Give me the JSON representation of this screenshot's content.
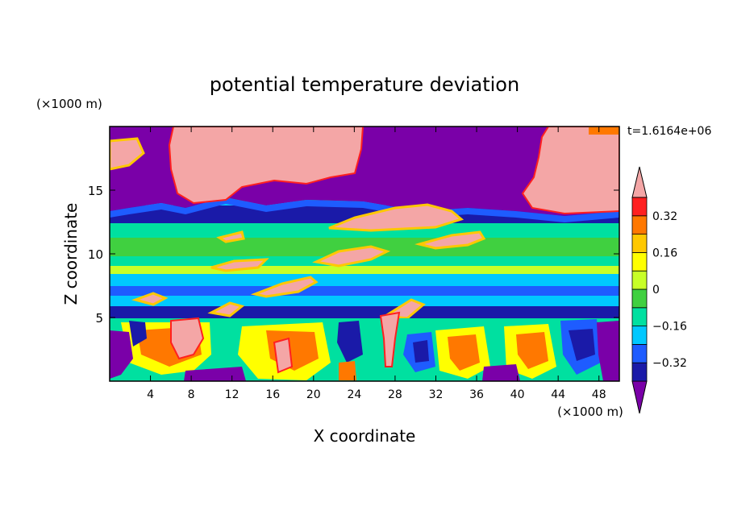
{
  "chart_data": {
    "type": "heatmap",
    "title": "potential temperature deviation",
    "xlabel": "X coordinate",
    "ylabel": "Z coordinate",
    "x_unit": "(×1000 m)",
    "y_unit": "(×1000 m)",
    "time_label": "t=1.6164e+06",
    "xlim": [
      0,
      50
    ],
    "ylim": [
      0,
      20
    ],
    "x_ticks": [
      4,
      8,
      12,
      16,
      20,
      24,
      28,
      32,
      36,
      40,
      44,
      48
    ],
    "y_ticks": [
      5,
      10,
      15
    ],
    "colorbar": {
      "levels": [
        -0.4,
        -0.32,
        -0.24,
        -0.16,
        -0.08,
        0,
        0.08,
        0.16,
        0.24,
        0.32,
        0.4
      ],
      "tick_labels": [
        {
          "value": 0.32,
          "label": "0.32"
        },
        {
          "value": 0.16,
          "label": "0.16"
        },
        {
          "value": 0,
          "label": "0"
        },
        {
          "value": -0.16,
          "label": "−0.16"
        },
        {
          "value": -0.32,
          "label": "−0.32"
        }
      ],
      "colors": [
        "#7a00a8",
        "#1a1aa8",
        "#1e5cff",
        "#00c8ff",
        "#00e0a0",
        "#40d040",
        "#c8ff28",
        "#ffff00",
        "#ffc800",
        "#ff7800",
        "#ff2020",
        "#f4a6a6"
      ],
      "extend": "both"
    },
    "regions": [
      {
        "name": "upper-negative-layer",
        "value": -0.45,
        "x": [
          0,
          50
        ],
        "z": [
          13.5,
          19.6
        ]
      },
      {
        "name": "upper-positive-blob-left",
        "value": 0.45,
        "x": [
          7,
          24
        ],
        "z": [
          14,
          19.6
        ]
      },
      {
        "name": "upper-positive-blob-right",
        "value": 0.45,
        "x": [
          42,
          50
        ],
        "z": [
          13.5,
          19.4
        ]
      },
      {
        "name": "positive-layer-z12",
        "value": 0.45,
        "x": [
          23,
          34
        ],
        "z": [
          11.5,
          13.5
        ]
      },
      {
        "name": "lower-convective-layer",
        "value": 0.0,
        "x": [
          0,
          50
        ],
        "z": [
          0,
          5
        ]
      }
    ]
  }
}
